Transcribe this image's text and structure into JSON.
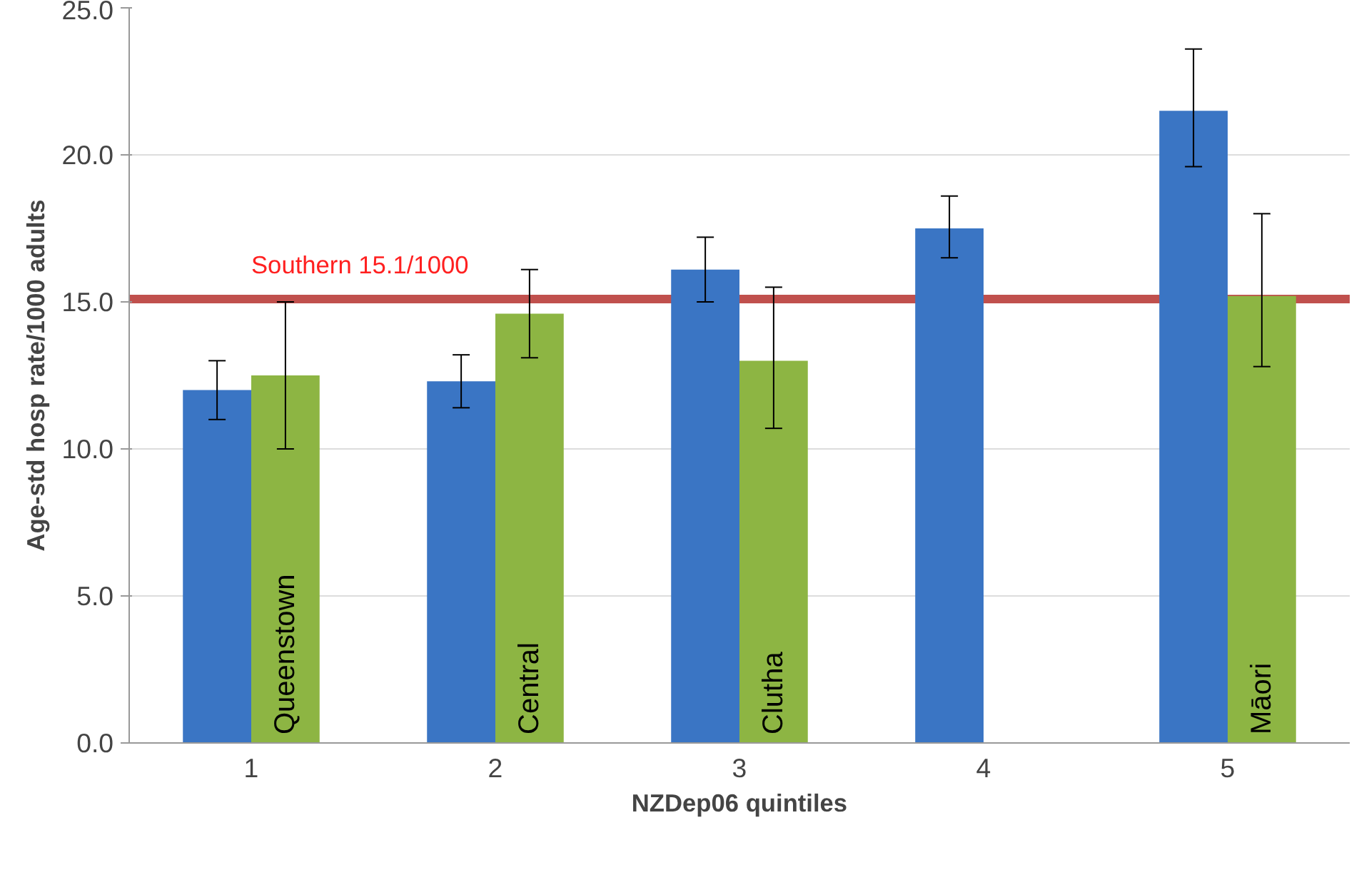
{
  "chart_data": {
    "type": "bar",
    "xlabel": "NZDep06 quintiles",
    "ylabel": "Age-std hosp rate/1000 adults",
    "categories": [
      "1",
      "2",
      "3",
      "4",
      "5"
    ],
    "series": [
      {
        "color": "#3a75c4",
        "values": [
          12.0,
          12.3,
          16.1,
          17.5,
          21.5
        ],
        "errors": [
          [
            11.0,
            13.0
          ],
          [
            11.4,
            13.2
          ],
          [
            15.0,
            17.2
          ],
          [
            16.5,
            18.6
          ],
          [
            19.6,
            23.6
          ]
        ]
      },
      {
        "color": "#8db543",
        "values": [
          12.5,
          14.6,
          13.0,
          null,
          15.2
        ],
        "errors": [
          [
            10.0,
            15.0
          ],
          [
            13.1,
            16.1
          ],
          [
            10.7,
            15.5
          ],
          null,
          [
            12.8,
            18.0
          ]
        ]
      }
    ],
    "ylim": [
      0,
      25
    ],
    "yticks": [
      {
        "value": 0,
        "label": "0.0"
      },
      {
        "value": 5,
        "label": "5.0"
      },
      {
        "value": 10,
        "label": "10.0"
      },
      {
        "value": 15,
        "label": "15.0"
      },
      {
        "value": 20,
        "label": "20.0"
      },
      {
        "value": 25,
        "label": "25.0"
      }
    ],
    "grid": "y",
    "ref_lines": [
      {
        "axis": "y",
        "value": 15.1,
        "label": "Southern 15.1/1000",
        "color": "#c0504d"
      }
    ],
    "annotations": [
      {
        "text": "Queenstown",
        "x": "1",
        "y": 0
      },
      {
        "text": "Central",
        "x": "2",
        "y": 0
      },
      {
        "text": "Clutha",
        "x": "3",
        "y": 0
      },
      {
        "text": "Māori",
        "x": "5",
        "y": 0
      }
    ]
  }
}
